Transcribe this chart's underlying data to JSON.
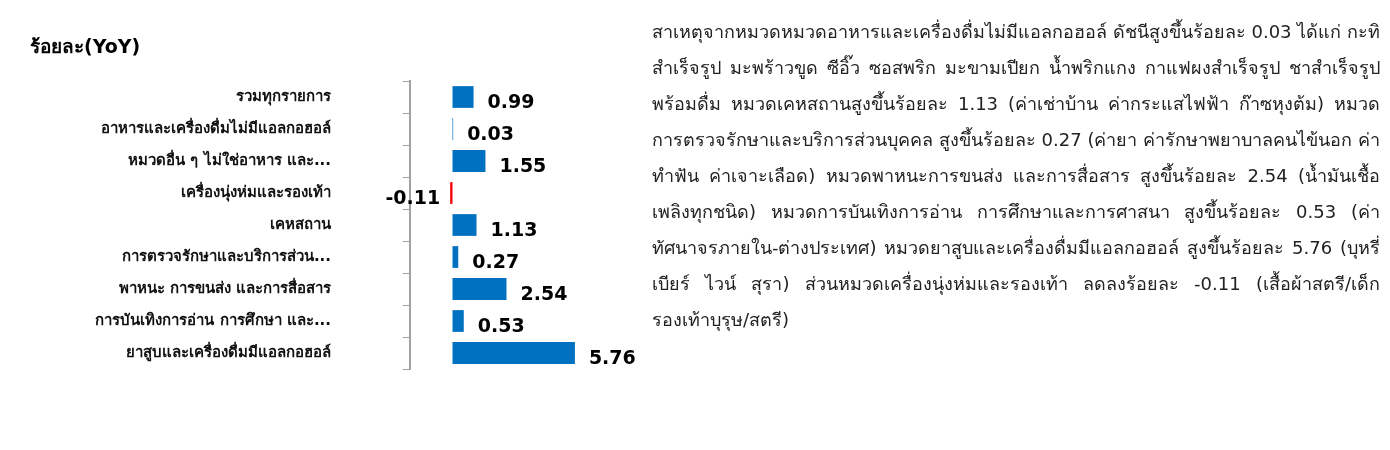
{
  "chart_data": {
    "type": "bar",
    "orientation": "horizontal",
    "xlabel": "ร้อยละ(YoY)",
    "categories": [
      "รวมทุกรายการ",
      "อาหารและเครื่องดื่มไม่มีแอลกอฮอล์",
      "หมวดอื่น ๆ ไม่ใช่อาหาร และ...",
      "เครื่องนุ่งห่มและรองเท้า",
      "เคหสถาน",
      "การตรวจรักษาและบริการส่วน...",
      "พาหนะ การขนส่ง และการสื่อสาร",
      "การบันเทิงการอ่าน การศึกษา และ...",
      "ยาสูบและเครื่องดื่มมีแอลกอฮอล์"
    ],
    "values": [
      0.99,
      0.03,
      1.55,
      -0.11,
      1.13,
      0.27,
      2.54,
      0.53,
      5.76
    ],
    "colors": [
      "#0070c0",
      "#0070c0",
      "#0070c0",
      "#ff0000",
      "#0070c0",
      "#0070c0",
      "#0070c0",
      "#0070c0",
      "#0070c0"
    ],
    "data_labels": true,
    "legend": false,
    "annotations": [
      "สาเหตุจากหมวดหมวดอาหารและเครื่องดื่มไม่มีแอลกอฮอล์ ดัชนีสูงขึ้นร้อยละ 0.03 ได้แก่  กะทิสำเร็จรูป มะพร้าวขูด ซีอิ๊ว ซอสพริก มะขามเปียก น้ำพริกแกง กาแฟผงสำเร็จรูป ชาสำเร็จรูปพร้อมดื่ม หมวดเคหสถานสูงขึ้นร้อยละ 1.13 (ค่าเช่าบ้าน  ค่ากระแสไฟฟ้า ก๊าซหุงต้ม) หมวดการตรวจรักษาและบริการส่วนบุคคล สูงขึ้นร้อยละ 0.27 (ค่ายา ค่ารักษาพยาบาลคนไข้นอก ค่าทำฟัน ค่าเจาะเลือด) หมวดพาหนะการขนส่ง และการสื่อสาร สูงขึ้นร้อยละ 2.54 (น้ำมันเชื้อเพลิงทุกชนิด) หมวดการบันเทิงการอ่าน การศึกษาและการศาสนา สูงขึ้นร้อยละ 0.53 (ค่าทัศนาจรภายใน-ต่างประเทศ) หมวดยาสูบและเครื่องดื่มมีแอลกอฮอล์ สูงขึ้นร้อยละ 5.76 (บุหรี่ เบียร์ ไวน์ สุรา) ส่วนหมวดเครื่องนุ่งห่มและรองเท้า ลดลงร้อยละ -0.11 (เสื้อผ้าสตรี/เด็ก รองเท้าบุรุษ/สตรี)"
    ]
  }
}
